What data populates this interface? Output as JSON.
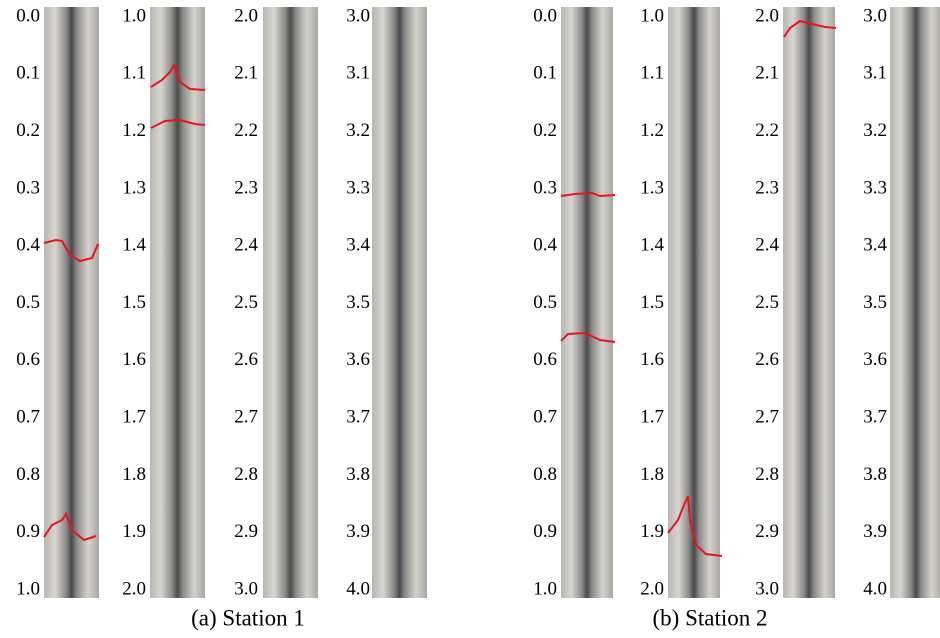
{
  "panels": [
    {
      "caption": "(a) Station 1",
      "columns": [
        {
          "labels": [
            "0.0",
            "0.1",
            "0.2",
            "0.3",
            "0.4",
            "0.5",
            "0.6",
            "0.7",
            "0.8",
            "0.9",
            "1.0"
          ]
        },
        {
          "labels": [
            "1.0",
            "1.1",
            "1.2",
            "1.3",
            "1.4",
            "1.5",
            "1.6",
            "1.7",
            "1.8",
            "1.9",
            "2.0"
          ]
        },
        {
          "labels": [
            "2.0",
            "2.1",
            "2.2",
            "2.3",
            "2.4",
            "2.5",
            "2.6",
            "2.7",
            "2.8",
            "2.9",
            "3.0"
          ]
        },
        {
          "labels": [
            "3.0",
            "3.1",
            "3.2",
            "3.3",
            "3.4",
            "3.5",
            "3.6",
            "3.7",
            "3.8",
            "3.9",
            "4.0"
          ]
        }
      ]
    },
    {
      "caption": "(b) Station 2",
      "columns": [
        {
          "labels": [
            "0.0",
            "0.1",
            "0.2",
            "0.3",
            "0.4",
            "0.5",
            "0.6",
            "0.7",
            "0.8",
            "0.9",
            "1.0"
          ]
        },
        {
          "labels": [
            "1.0",
            "1.1",
            "1.2",
            "1.3",
            "1.4",
            "1.5",
            "1.6",
            "1.7",
            "1.8",
            "1.9",
            "2.0"
          ]
        },
        {
          "labels": [
            "2.0",
            "2.1",
            "2.2",
            "2.3",
            "2.4",
            "2.5",
            "2.6",
            "2.7",
            "2.8",
            "2.9",
            "3.0"
          ]
        },
        {
          "labels": [
            "3.0",
            "3.1",
            "3.2",
            "3.3",
            "3.4",
            "3.5",
            "3.6",
            "3.7",
            "3.8",
            "3.9",
            "4.0"
          ]
        }
      ]
    }
  ]
}
